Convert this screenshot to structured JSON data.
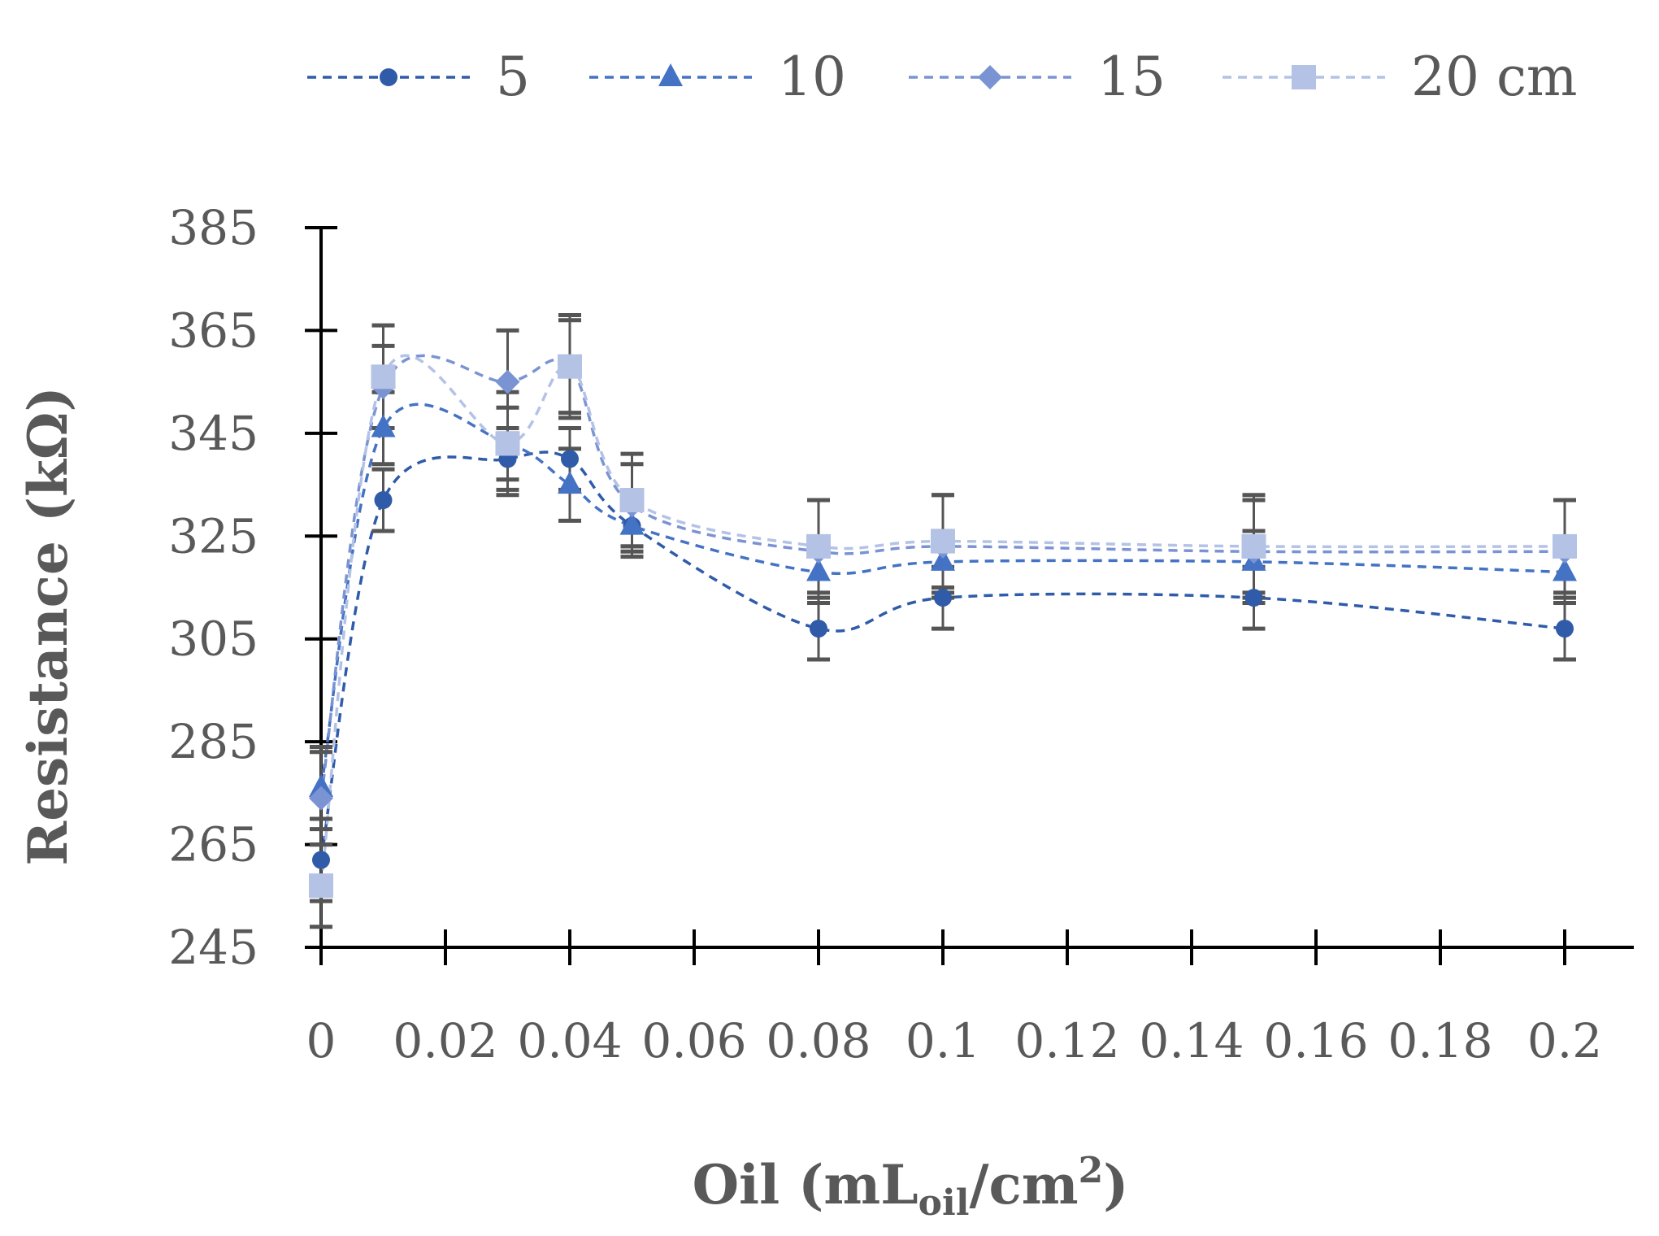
{
  "chart_data": {
    "type": "line",
    "title": "",
    "xlabel": {
      "text": "Oil (mL",
      "sub": "oil",
      "mid": "/cm",
      "sup": "2",
      "end": ")"
    },
    "ylabel": "Resistance  (kΩ)",
    "xlim": [
      0,
      0.21
    ],
    "ylim": [
      245,
      385
    ],
    "xticks": [
      0,
      0.02,
      0.04,
      0.06,
      0.08,
      0.1,
      0.12,
      0.14,
      0.16,
      0.18,
      0.2
    ],
    "xtick_labels": [
      "0",
      "0.02",
      "0.04",
      "0.06",
      "0.08",
      "0.1",
      "0.12",
      "0.14",
      "0.16",
      "0.18",
      "0.2"
    ],
    "yticks": [
      245,
      265,
      285,
      305,
      325,
      345,
      365,
      385
    ],
    "ytick_labels": [
      "245",
      "265",
      "285",
      "305",
      "325",
      "345",
      "365",
      "385"
    ],
    "legend_position": "top",
    "x": [
      0,
      0.01,
      0.03,
      0.04,
      0.05,
      0.08,
      0.1,
      0.15,
      0.2
    ],
    "series": [
      {
        "name": "5",
        "marker": "circle",
        "color": "#2F5BA8",
        "values": [
          262,
          332,
          340,
          340,
          327,
          307,
          313,
          313,
          307
        ],
        "errors": [
          8,
          6,
          6,
          6,
          5,
          6,
          6,
          6,
          6
        ]
      },
      {
        "name": "10",
        "marker": "triangle",
        "color": "#4472C4",
        "values": [
          276,
          346,
          343,
          335,
          327,
          318,
          320,
          320,
          318
        ],
        "errors": [
          8,
          7,
          7,
          7,
          6,
          6,
          6,
          6,
          6
        ]
      },
      {
        "name": "15",
        "marker": "diamond",
        "color": "#7A93D2",
        "values": [
          274,
          354,
          355,
          358,
          331,
          322,
          323,
          322,
          322
        ],
        "errors": [
          9,
          8,
          10,
          9,
          8,
          10,
          10,
          10,
          10
        ]
      },
      {
        "name": "20 cm",
        "marker": "square",
        "color": "#B4C2E6",
        "values": [
          257,
          356,
          343,
          358,
          332,
          323,
          324,
          323,
          323
        ],
        "errors": [
          8,
          10,
          10,
          10,
          9,
          9,
          9,
          10,
          9
        ]
      }
    ]
  }
}
